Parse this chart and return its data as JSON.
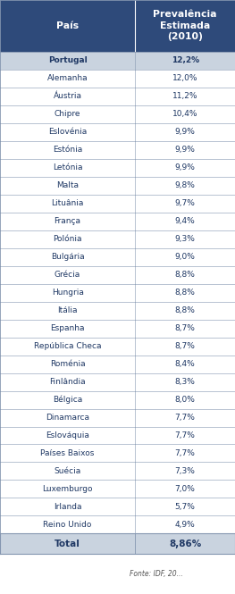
{
  "header_col1": "País",
  "header_col2": "Prevalência\nEstimada\n(2010)",
  "rows": [
    [
      "Portugal",
      "12,2%",
      true
    ],
    [
      "Alemanha",
      "12,0%",
      false
    ],
    [
      "Áustria",
      "11,2%",
      false
    ],
    [
      "Chipre",
      "10,4%",
      false
    ],
    [
      "Eslovénia",
      "9,9%",
      false
    ],
    [
      "Estónia",
      "9,9%",
      false
    ],
    [
      "Letónia",
      "9,9%",
      false
    ],
    [
      "Malta",
      "9,8%",
      false
    ],
    [
      "Lituânia",
      "9,7%",
      false
    ],
    [
      "França",
      "9,4%",
      false
    ],
    [
      "Polónia",
      "9,3%",
      false
    ],
    [
      "Bulgária",
      "9,0%",
      false
    ],
    [
      "Grécia",
      "8,8%",
      false
    ],
    [
      "Hungria",
      "8,8%",
      false
    ],
    [
      "Itália",
      "8,8%",
      false
    ],
    [
      "Espanha",
      "8,7%",
      false
    ],
    [
      "República Checa",
      "8,7%",
      false
    ],
    [
      "Roménia",
      "8,4%",
      false
    ],
    [
      "Finlândia",
      "8,3%",
      false
    ],
    [
      "Bélgica",
      "8,0%",
      false
    ],
    [
      "Dinamarca",
      "7,7%",
      false
    ],
    [
      "Eslováquia",
      "7,7%",
      false
    ],
    [
      "Países Baixos",
      "7,7%",
      false
    ],
    [
      "Suécia",
      "7,3%",
      false
    ],
    [
      "Luxemburgo",
      "7,0%",
      false
    ],
    [
      "Irlanda",
      "5,7%",
      false
    ],
    [
      "Reino Unido",
      "4,9%",
      false
    ]
  ],
  "footer_col1": "Total",
  "footer_col2": "8,86%",
  "header_bg": "#2E4A7A",
  "header_text": "#FFFFFF",
  "portugal_bg": "#C9D3DF",
  "portugal_text": "#1F3864",
  "row_bg_white": "#FFFFFF",
  "row_text": "#1F3864",
  "footer_bg": "#C9D3DF",
  "footer_text": "#1F3864",
  "border_color": "#8496B0",
  "col_split": 0.575,
  "header_fontsize": 7.8,
  "row_fontsize": 6.5,
  "footer_fontsize": 7.5
}
